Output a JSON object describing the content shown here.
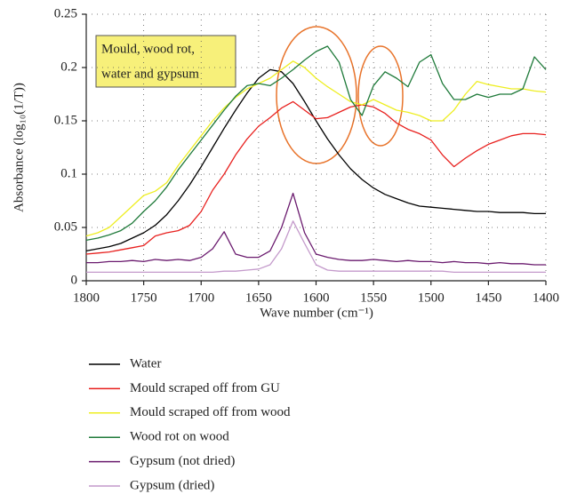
{
  "chart_data": {
    "type": "line",
    "y_label": "Absorbance (log₁₀(1/T))",
    "x_label": "Wave number (cm⁻¹)",
    "annotation": [
      "Mould, wood rot,",
      "water and gypsum"
    ],
    "xlim": [
      1800,
      1400
    ],
    "xticks": [
      1800,
      1750,
      1700,
      1650,
      1600,
      1550,
      1500,
      1450,
      1400
    ],
    "ylim": [
      0,
      0.25
    ],
    "yticks": [
      0,
      0.05,
      0.1,
      0.15,
      0.2,
      0.25
    ],
    "grid": true,
    "x": [
      1800,
      1790,
      1780,
      1770,
      1760,
      1750,
      1740,
      1730,
      1720,
      1710,
      1700,
      1690,
      1680,
      1670,
      1660,
      1650,
      1640,
      1630,
      1620,
      1610,
      1600,
      1590,
      1580,
      1570,
      1560,
      1550,
      1540,
      1530,
      1520,
      1510,
      1500,
      1490,
      1480,
      1470,
      1460,
      1450,
      1440,
      1430,
      1420,
      1410,
      1400
    ],
    "series": [
      {
        "name": "Water",
        "color": "#000000",
        "values": [
          0.028,
          0.03,
          0.032,
          0.035,
          0.04,
          0.045,
          0.052,
          0.062,
          0.075,
          0.09,
          0.107,
          0.125,
          0.143,
          0.16,
          0.176,
          0.19,
          0.198,
          0.196,
          0.185,
          0.168,
          0.15,
          0.133,
          0.118,
          0.105,
          0.095,
          0.087,
          0.081,
          0.077,
          0.073,
          0.07,
          0.069,
          0.068,
          0.067,
          0.066,
          0.065,
          0.065,
          0.064,
          0.064,
          0.064,
          0.063,
          0.063
        ]
      },
      {
        "name": "Mould scraped off from GU",
        "color": "#e8201e",
        "values": [
          0.025,
          0.026,
          0.027,
          0.029,
          0.031,
          0.033,
          0.042,
          0.045,
          0.047,
          0.052,
          0.065,
          0.085,
          0.1,
          0.118,
          0.133,
          0.145,
          0.153,
          0.162,
          0.168,
          0.16,
          0.152,
          0.153,
          0.158,
          0.163,
          0.165,
          0.163,
          0.157,
          0.148,
          0.142,
          0.138,
          0.132,
          0.118,
          0.107,
          0.115,
          0.122,
          0.128,
          0.132,
          0.136,
          0.138,
          0.138,
          0.137
        ]
      },
      {
        "name": "Mould scraped off from wood",
        "color": "#eeee22",
        "values": [
          0.042,
          0.045,
          0.05,
          0.06,
          0.07,
          0.08,
          0.084,
          0.092,
          0.108,
          0.122,
          0.136,
          0.15,
          0.162,
          0.172,
          0.18,
          0.185,
          0.19,
          0.198,
          0.206,
          0.2,
          0.19,
          0.182,
          0.175,
          0.168,
          0.165,
          0.17,
          0.165,
          0.16,
          0.158,
          0.155,
          0.15,
          0.15,
          0.16,
          0.175,
          0.187,
          0.184,
          0.182,
          0.18,
          0.18,
          0.178,
          0.177
        ]
      },
      {
        "name": "Wood rot on wood",
        "color": "#1f7a3a",
        "values": [
          0.038,
          0.04,
          0.043,
          0.047,
          0.054,
          0.065,
          0.075,
          0.088,
          0.104,
          0.118,
          0.132,
          0.146,
          0.16,
          0.173,
          0.183,
          0.185,
          0.183,
          0.19,
          0.198,
          0.207,
          0.215,
          0.22,
          0.205,
          0.17,
          0.155,
          0.183,
          0.196,
          0.19,
          0.182,
          0.205,
          0.212,
          0.185,
          0.17,
          0.17,
          0.175,
          0.172,
          0.175,
          0.175,
          0.18,
          0.21,
          0.198
        ]
      },
      {
        "name": "Gypsum (not dried)",
        "color": "#6a1a6e",
        "values": [
          0.017,
          0.017,
          0.018,
          0.018,
          0.019,
          0.018,
          0.02,
          0.019,
          0.02,
          0.019,
          0.022,
          0.03,
          0.046,
          0.025,
          0.022,
          0.022,
          0.028,
          0.05,
          0.082,
          0.045,
          0.025,
          0.022,
          0.02,
          0.019,
          0.019,
          0.02,
          0.019,
          0.018,
          0.019,
          0.018,
          0.018,
          0.017,
          0.018,
          0.017,
          0.017,
          0.016,
          0.017,
          0.016,
          0.016,
          0.015,
          0.015
        ]
      },
      {
        "name": "Gypsum (dried)",
        "color": "#c49acb",
        "values": [
          0.008,
          0.008,
          0.008,
          0.008,
          0.008,
          0.008,
          0.008,
          0.008,
          0.008,
          0.008,
          0.008,
          0.008,
          0.009,
          0.009,
          0.01,
          0.011,
          0.015,
          0.03,
          0.056,
          0.035,
          0.015,
          0.01,
          0.009,
          0.009,
          0.009,
          0.009,
          0.009,
          0.009,
          0.009,
          0.009,
          0.009,
          0.009,
          0.008,
          0.008,
          0.008,
          0.008,
          0.008,
          0.008,
          0.008,
          0.008,
          0.008
        ]
      }
    ]
  }
}
